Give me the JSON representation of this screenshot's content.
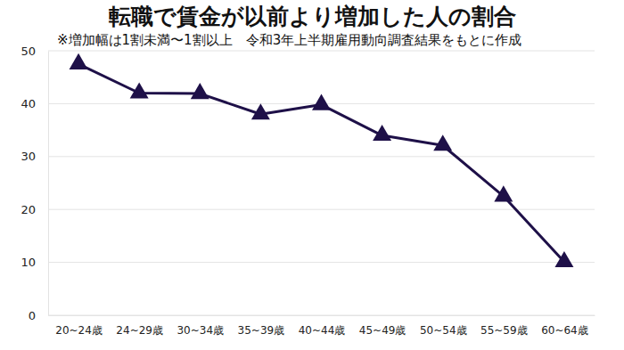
{
  "chart_data": {
    "type": "line",
    "title": "転職で賃金が以前より増加した人の割合",
    "subtitle": "※増加幅は1割未満〜1割以上　令和3年上半期雇用動向調査結果をもとに作成",
    "categories": [
      "20~24歳",
      "24~29歳",
      "30~34歳",
      "35~39歳",
      "40~44歳",
      "45~49歳",
      "50~54歳",
      "55~59歳",
      "60~64歳"
    ],
    "values": [
      47.5,
      42,
      41.9,
      38,
      39.8,
      34,
      32.1,
      22.5,
      10.1
    ],
    "color": "#1e1048",
    "marker": "triangle",
    "ylim": [
      0,
      50
    ],
    "yticks": [
      0,
      10,
      20,
      30,
      40,
      50
    ],
    "grid": true
  }
}
